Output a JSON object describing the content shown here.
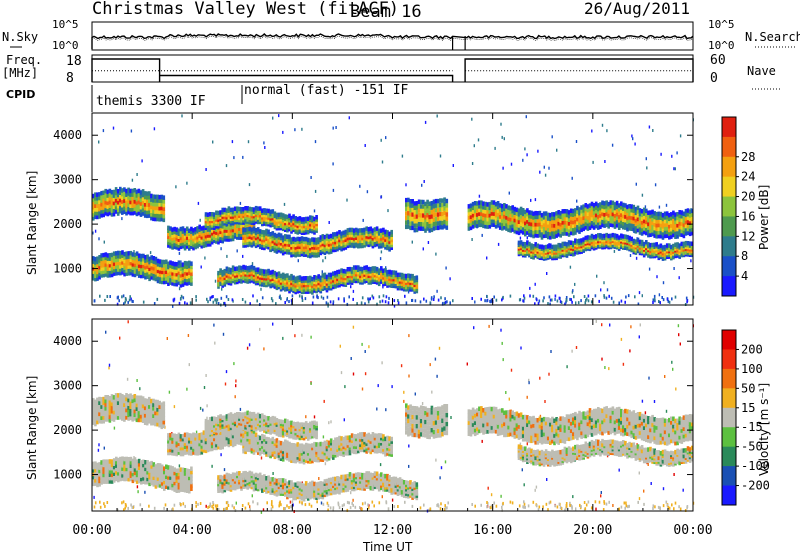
{
  "chart_data": {
    "type": "heatmap",
    "title": "Christmas Valley West (fitACF)",
    "beam": "Beam 16",
    "date": "26/Aug/2011",
    "xlabel": "Time UT",
    "x_ticks": [
      "00:00",
      "04:00",
      "08:00",
      "12:00",
      "16:00",
      "20:00",
      "00:00"
    ],
    "x_range_hours": [
      0,
      24
    ],
    "data_gap_hours": [
      14.4,
      14.9
    ],
    "top_panels": {
      "nsky": {
        "label": "N.Sky",
        "left_ticks": [
          "10^5",
          "10^0"
        ],
        "right_label": "N.Search",
        "right_ticks": [
          "10^5",
          "10^0"
        ]
      },
      "freq": {
        "label": "Freq.",
        "unit": "[MHz]",
        "left_ticks": [
          "18",
          "8"
        ],
        "right_label": "Nave",
        "right_ticks": [
          "60",
          "0"
        ],
        "freq_steps": [
          {
            "start_h": 0.0,
            "end_h": 2.7,
            "mhz": 16.5
          },
          {
            "start_h": 2.7,
            "end_h": 14.4,
            "mhz": 10.4
          },
          {
            "start_h": 14.9,
            "end_h": 24.0,
            "mhz": 16.5
          }
        ],
        "nave_level": 25
      },
      "cpid": {
        "label": "CPID",
        "segments": [
          {
            "start_h": 0.0,
            "end_h": 6.0,
            "name": "themis 3300 IF"
          },
          {
            "start_h": 6.0,
            "end_h": 24.0,
            "name": "normal (fast) -151 IF"
          }
        ]
      }
    },
    "panels": [
      {
        "id": "power",
        "ylabel": "Slant Range [km]",
        "ylim": [
          180,
          4500
        ],
        "y_ticks": [
          "1000",
          "2000",
          "3000",
          "4000"
        ],
        "colorbar": {
          "label": "Power [dB]",
          "ticks": [
            "4",
            "8",
            "12",
            "16",
            "20",
            "24",
            "28"
          ],
          "colors": [
            "#1a1aff",
            "#1a50c8",
            "#2e7c8c",
            "#4e9a4e",
            "#8cc43c",
            "#f0d020",
            "#f4a010",
            "#f06010",
            "#e02010"
          ]
        },
        "bands": [
          {
            "start_h": 0.0,
            "end_h": 2.9,
            "center_km": 2400,
            "width_km": 500
          },
          {
            "start_h": 3.0,
            "end_h": 6.5,
            "center_km": 1800,
            "width_km": 400
          },
          {
            "start_h": 4.5,
            "end_h": 9.0,
            "center_km": 2100,
            "width_km": 300
          },
          {
            "start_h": 6.0,
            "end_h": 12.0,
            "center_km": 1600,
            "width_km": 350
          },
          {
            "start_h": 0.0,
            "end_h": 4.0,
            "center_km": 1000,
            "width_km": 450
          },
          {
            "start_h": 5.0,
            "end_h": 13.0,
            "center_km": 750,
            "width_km": 300
          },
          {
            "start_h": 12.5,
            "end_h": 14.2,
            "center_km": 2300,
            "width_km": 600
          },
          {
            "start_h": 15.0,
            "end_h": 24.0,
            "center_km": 2100,
            "width_km": 500
          },
          {
            "start_h": 17.0,
            "end_h": 24.0,
            "center_km": 1500,
            "width_km": 250
          }
        ]
      },
      {
        "id": "velocity",
        "ylabel": "Slant Range [km]",
        "ylim": [
          180,
          4500
        ],
        "y_ticks": [
          "1000",
          "2000",
          "3000",
          "4000"
        ],
        "colorbar": {
          "label": "Velocity [m s⁻¹]",
          "ticks": [
            "200",
            "100",
            "50",
            "15",
            "-15",
            "-50",
            "-100",
            "-200"
          ],
          "colors": [
            "#1a1aff",
            "#1a50b4",
            "#2a8a5a",
            "#5cc040",
            "#bdbdb4",
            "#f0b020",
            "#f07010",
            "#f03010",
            "#e00000"
          ]
        },
        "bands": [
          {
            "start_h": 0.0,
            "end_h": 2.9,
            "center_km": 2400,
            "width_km": 500
          },
          {
            "start_h": 3.0,
            "end_h": 6.5,
            "center_km": 1800,
            "width_km": 400
          },
          {
            "start_h": 4.5,
            "end_h": 9.0,
            "center_km": 2100,
            "width_km": 300
          },
          {
            "start_h": 6.0,
            "end_h": 12.0,
            "center_km": 1600,
            "width_km": 350
          },
          {
            "start_h": 0.0,
            "end_h": 4.0,
            "center_km": 1000,
            "width_km": 450
          },
          {
            "start_h": 5.0,
            "end_h": 13.0,
            "center_km": 750,
            "width_km": 300
          },
          {
            "start_h": 12.5,
            "end_h": 14.2,
            "center_km": 2300,
            "width_km": 600
          },
          {
            "start_h": 15.0,
            "end_h": 24.0,
            "center_km": 2100,
            "width_km": 500
          },
          {
            "start_h": 17.0,
            "end_h": 24.0,
            "center_km": 1500,
            "width_km": 250
          }
        ]
      }
    ]
  }
}
